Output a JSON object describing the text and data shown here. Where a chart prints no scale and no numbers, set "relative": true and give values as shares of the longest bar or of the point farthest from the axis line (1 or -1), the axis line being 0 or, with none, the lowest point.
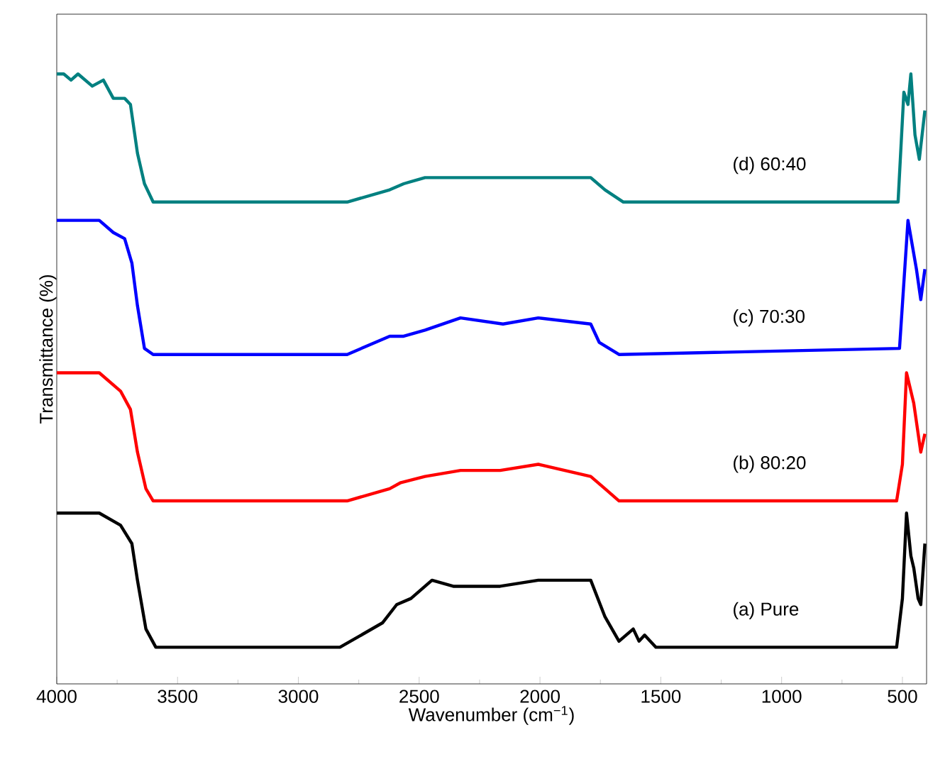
{
  "chart_data": {
    "type": "line",
    "relative": true,
    "xlabel": "Wavenumber (cm$^{−1}$)",
    "ylabel": "Transmittance (%)",
    "xlim": [
      4000,
      400
    ],
    "xticks": [
      4000,
      3500,
      3000,
      2500,
      2000,
      1500,
      1000,
      500
    ],
    "tick_labels": "x",
    "legend": false,
    "marker": "none",
    "line_style": "solid",
    "grid": false,
    "series": [
      {
        "name": "(a) Pure",
        "color": "#000000",
        "x": [
          4000,
          3824,
          3736,
          3689,
          3666,
          3631,
          3590,
          2828,
          2740,
          2652,
          2593,
          2534,
          2447,
          2359,
          2165,
          2007,
          1790,
          1731,
          1673,
          1614,
          1590,
          1567,
          1520,
          524,
          500,
          483,
          465,
          453,
          435,
          424,
          407
        ],
        "values": [
          0.28,
          0.28,
          0.26,
          0.23,
          0.17,
          0.09,
          0.06,
          0.06,
          0.08,
          0.1,
          0.13,
          0.14,
          0.17,
          0.16,
          0.16,
          0.17,
          0.17,
          0.11,
          0.07,
          0.09,
          0.07,
          0.08,
          0.06,
          0.06,
          0.14,
          0.28,
          0.21,
          0.19,
          0.14,
          0.13,
          0.23
        ]
      },
      {
        "name": "(b) 80:20",
        "color": "#ff0000",
        "x": [
          4000,
          3824,
          3736,
          3695,
          3666,
          3631,
          3601,
          2798,
          2622,
          2576,
          2476,
          2329,
          2165,
          2007,
          1790,
          1731,
          1673,
          524,
          500,
          483,
          453,
          424,
          407
        ],
        "values": [
          0.51,
          0.51,
          0.48,
          0.45,
          0.38,
          0.32,
          0.3,
          0.3,
          0.32,
          0.33,
          0.34,
          0.35,
          0.35,
          0.36,
          0.34,
          0.32,
          0.3,
          0.3,
          0.36,
          0.51,
          0.46,
          0.38,
          0.41
        ]
      },
      {
        "name": "(c) 70:30",
        "color": "#0000ff",
        "x": [
          4000,
          3912,
          3824,
          3766,
          3719,
          3689,
          3666,
          3637,
          3601,
          2798,
          2622,
          2564,
          2476,
          2329,
          2153,
          2007,
          1790,
          1755,
          1673,
          512,
          477,
          442,
          424,
          407
        ],
        "values": [
          0.76,
          0.76,
          0.76,
          0.74,
          0.73,
          0.69,
          0.62,
          0.55,
          0.54,
          0.54,
          0.57,
          0.57,
          0.58,
          0.6,
          0.59,
          0.6,
          0.59,
          0.56,
          0.54,
          0.55,
          0.76,
          0.68,
          0.63,
          0.68
        ]
      },
      {
        "name": "(d) 60:40",
        "color": "#008080",
        "x": [
          4000,
          3971,
          3941,
          3912,
          3853,
          3807,
          3766,
          3719,
          3695,
          3666,
          3637,
          3601,
          2798,
          2622,
          2564,
          2476,
          2329,
          2124,
          2007,
          1790,
          1731,
          1655,
          518,
          494,
          477,
          465,
          448,
          430,
          407
        ],
        "values": [
          1.0,
          1.0,
          0.99,
          1.0,
          0.98,
          0.99,
          0.96,
          0.96,
          0.95,
          0.87,
          0.82,
          0.79,
          0.79,
          0.81,
          0.82,
          0.83,
          0.83,
          0.83,
          0.83,
          0.83,
          0.81,
          0.79,
          0.79,
          0.97,
          0.95,
          1.0,
          0.9,
          0.86,
          0.94
        ]
      }
    ]
  }
}
